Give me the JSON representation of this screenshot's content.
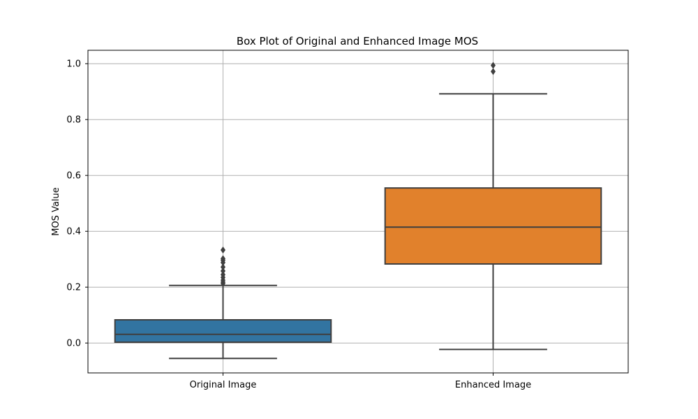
{
  "chart_data": {
    "type": "box",
    "title": "Box Plot of Original and Enhanced Image MOS",
    "xlabel": "",
    "ylabel": "MOS Value",
    "ylim": [
      -0.107,
      1.048
    ],
    "yticks": [
      0.0,
      0.2,
      0.4,
      0.6,
      0.8,
      1.0
    ],
    "ytick_labels": [
      "0.0",
      "0.2",
      "0.4",
      "0.6",
      "0.8",
      "1.0"
    ],
    "grid": true,
    "categories": [
      "Original Image",
      "Enhanced Image"
    ],
    "boxes": [
      {
        "category": "Original Image",
        "color": "#3274a1",
        "whisker_low": -0.055,
        "q1": 0.003,
        "median": 0.031,
        "q3": 0.083,
        "whisker_high": 0.206,
        "outliers": [
          0.213,
          0.218,
          0.225,
          0.235,
          0.245,
          0.258,
          0.272,
          0.288,
          0.296,
          0.302,
          0.333
        ]
      },
      {
        "category": "Enhanced Image",
        "color": "#e1812c",
        "whisker_low": -0.023,
        "q1": 0.283,
        "median": 0.415,
        "q3": 0.555,
        "whisker_high": 0.892,
        "outliers": [
          0.972,
          0.994
        ]
      }
    ]
  }
}
